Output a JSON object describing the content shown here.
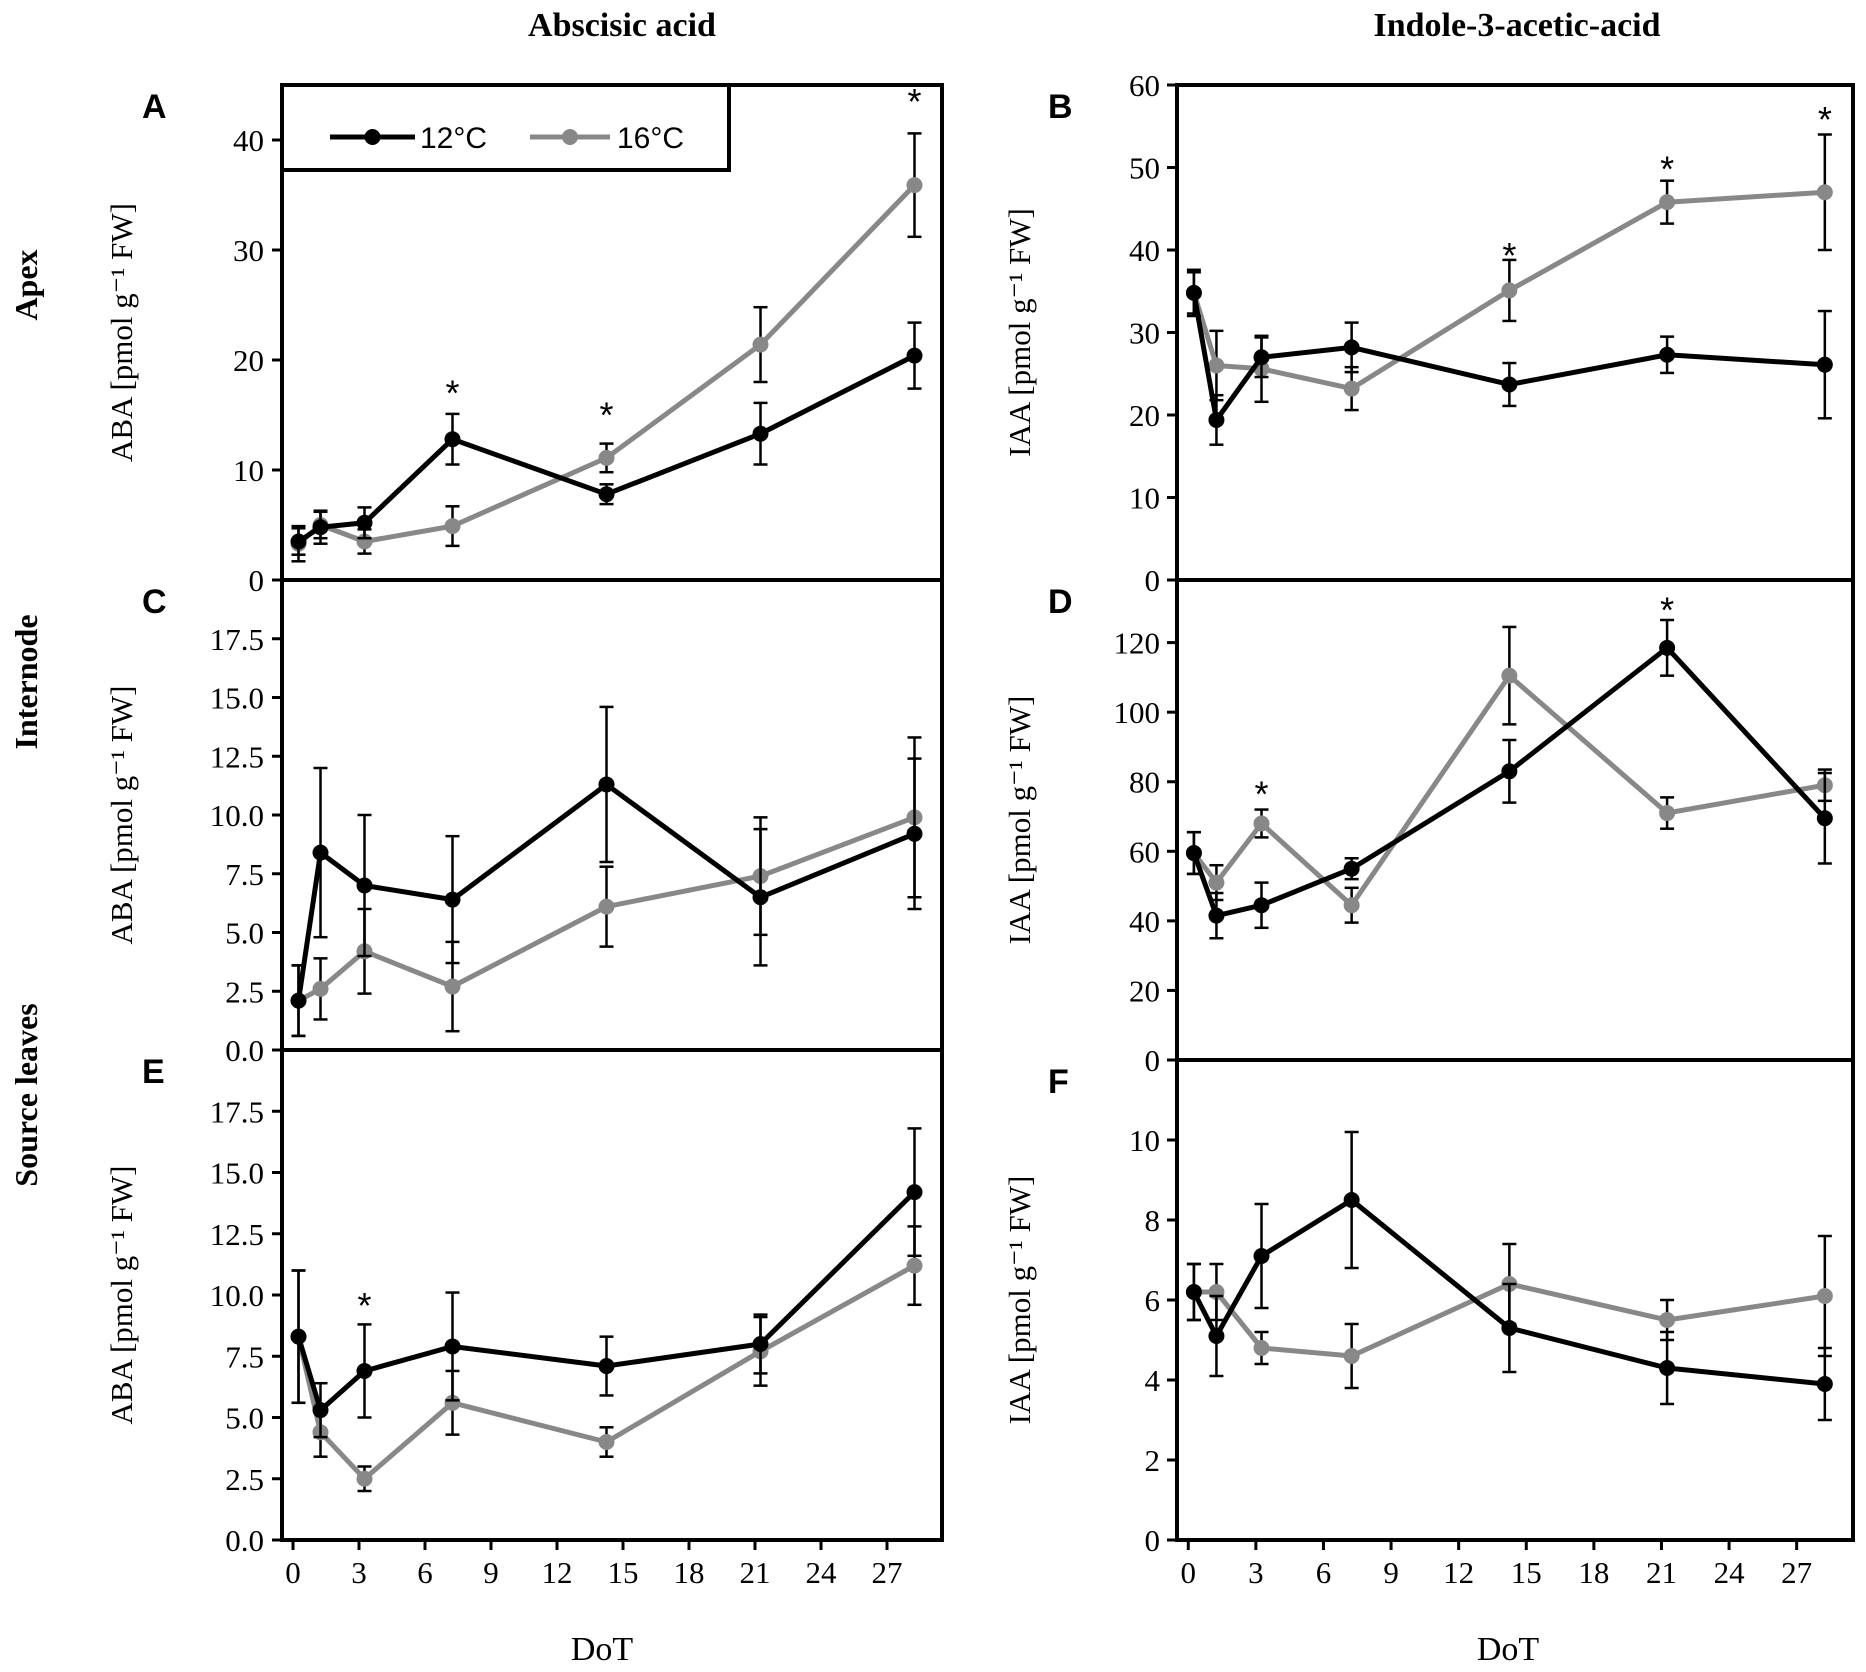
{
  "column_titles": [
    "Abscisic acid",
    "Indole-3-acetic-acid"
  ],
  "row_titles": [
    "Apex",
    "Internode",
    "Source leaves"
  ],
  "legend": {
    "entries": [
      "12°C",
      "16°C"
    ],
    "colors": [
      "#000000",
      "#888888"
    ]
  },
  "colors": {
    "series_12": "#000000",
    "series_16": "#888888",
    "axis": "#000000"
  },
  "xlabel": "DoT",
  "x_ticks": [
    "0",
    "3",
    "6",
    "9",
    "12",
    "15",
    "18",
    "21",
    "24",
    "27"
  ],
  "chart_data": [
    {
      "id": "A",
      "type": "line",
      "ylabel": "ABA [pmol g⁻¹ FW]",
      "xlim": [
        -0.5,
        29.5
      ],
      "ylim": [
        0,
        45
      ],
      "yticks": [
        "0",
        "10",
        "20",
        "30",
        "40"
      ],
      "ytick_values": [
        0,
        10,
        20,
        30,
        40
      ],
      "x": [
        0.25,
        1.25,
        3.25,
        7.25,
        14.25,
        21.25,
        28.25
      ],
      "series": [
        {
          "name": "12°C",
          "values": [
            3.5,
            4.8,
            5.2,
            12.8,
            7.8,
            13.3,
            20.4
          ],
          "errors": [
            1.2,
            1.5,
            1.4,
            2.3,
            0.9,
            2.8,
            3.0
          ]
        },
        {
          "name": "16°C",
          "values": [
            3.3,
            5.0,
            3.5,
            4.9,
            11.1,
            21.4,
            35.9
          ],
          "errors": [
            1.6,
            1.2,
            1.1,
            1.8,
            1.3,
            3.4,
            4.7
          ]
        }
      ],
      "significance": [
        {
          "x": 7.25,
          "y": 17.5,
          "label": "*"
        },
        {
          "x": 14.25,
          "y": 15.5,
          "label": "*"
        },
        {
          "x": 28.25,
          "y": 44.0,
          "label": "*"
        }
      ]
    },
    {
      "id": "B",
      "type": "line",
      "ylabel": "IAA [pmol g⁻¹ FW]",
      "xlim": [
        -0.5,
        29.5
      ],
      "ylim": [
        0,
        60
      ],
      "yticks": [
        "0",
        "10",
        "20",
        "30",
        "40",
        "50",
        "60"
      ],
      "ytick_values": [
        0,
        10,
        20,
        30,
        40,
        50,
        60
      ],
      "x": [
        0.25,
        1.25,
        3.25,
        7.25,
        14.25,
        21.25,
        28.25
      ],
      "series": [
        {
          "name": "12°C",
          "values": [
            34.8,
            19.4,
            27.0,
            28.2,
            23.7,
            27.3,
            26.1
          ],
          "errors": [
            2.8,
            3.0,
            2.4,
            3.0,
            2.6,
            2.2,
            6.5
          ]
        },
        {
          "name": "16°C",
          "values": [
            34.8,
            26.0,
            25.6,
            23.2,
            35.1,
            45.8,
            47.0
          ],
          "errors": [
            2.5,
            4.2,
            4.0,
            2.6,
            3.7,
            2.6,
            7.0
          ]
        }
      ],
      "significance": [
        {
          "x": 14.25,
          "y": 40.0,
          "label": "*"
        },
        {
          "x": 21.25,
          "y": 50.5,
          "label": "*"
        },
        {
          "x": 28.25,
          "y": 56.5,
          "label": "*"
        }
      ]
    },
    {
      "id": "C",
      "type": "line",
      "ylabel": "ABA [pmol g⁻¹ FW]",
      "xlim": [
        -0.5,
        29.5
      ],
      "ylim": [
        0,
        20
      ],
      "yticks": [
        "0.0",
        "2.5",
        "5.0",
        "7.5",
        "10.0",
        "12.5",
        "15.0",
        "17.5"
      ],
      "ytick_values": [
        0,
        2.5,
        5,
        7.5,
        10,
        12.5,
        15,
        17.5
      ],
      "x": [
        0.25,
        1.25,
        3.25,
        7.25,
        14.25,
        21.25,
        28.25
      ],
      "series": [
        {
          "name": "12°C",
          "values": [
            2.1,
            8.4,
            7.0,
            6.4,
            11.3,
            6.5,
            9.2
          ],
          "errors": [
            1.5,
            3.6,
            3.0,
            2.7,
            3.3,
            2.9,
            3.2
          ]
        },
        {
          "name": "16°C",
          "values": [
            2.1,
            2.6,
            4.2,
            2.7,
            6.1,
            7.4,
            9.9
          ],
          "errors": [
            1.5,
            1.3,
            1.8,
            1.9,
            1.7,
            2.5,
            3.4
          ]
        }
      ],
      "significance": []
    },
    {
      "id": "D",
      "type": "line",
      "ylabel": "IAA [pmol g⁻¹ FW]",
      "xlim": [
        -0.5,
        29.5
      ],
      "ylim": [
        0,
        138
      ],
      "yticks": [
        "0",
        "20",
        "40",
        "60",
        "80",
        "100",
        "120"
      ],
      "ytick_values": [
        0,
        20,
        40,
        60,
        80,
        100,
        120
      ],
      "x": [
        0.25,
        1.25,
        3.25,
        7.25,
        14.25,
        21.25,
        28.25
      ],
      "series": [
        {
          "name": "12°C",
          "values": [
            59.5,
            41.5,
            44.5,
            55.0,
            83.0,
            118.5,
            69.5
          ],
          "errors": [
            6.0,
            6.5,
            6.5,
            3.0,
            9.0,
            8.0,
            13.0
          ]
        },
        {
          "name": "16°C",
          "values": [
            59.5,
            51.0,
            68.0,
            44.5,
            110.5,
            71.0,
            79.0
          ],
          "errors": [
            6.0,
            5.0,
            4.0,
            5.0,
            14.0,
            4.5,
            4.5
          ]
        }
      ],
      "significance": [
        {
          "x": 3.25,
          "y": 78.0,
          "label": "*"
        },
        {
          "x": 21.25,
          "y": 131.0,
          "label": "*"
        }
      ]
    },
    {
      "id": "E",
      "type": "line",
      "ylabel": "ABA [pmol g⁻¹ FW]",
      "xlim": [
        -0.5,
        29.5
      ],
      "ylim": [
        0,
        20
      ],
      "yticks": [
        "0.0",
        "2.5",
        "5.0",
        "7.5",
        "10.0",
        "12.5",
        "15.0",
        "17.5"
      ],
      "ytick_values": [
        0,
        2.5,
        5,
        7.5,
        10,
        12.5,
        15,
        17.5
      ],
      "x": [
        0.25,
        1.25,
        3.25,
        7.25,
        14.25,
        21.25,
        28.25
      ],
      "series": [
        {
          "name": "12°C",
          "values": [
            8.3,
            5.3,
            6.9,
            7.9,
            7.1,
            8.0,
            14.2
          ],
          "errors": [
            2.7,
            1.1,
            1.9,
            2.2,
            1.2,
            1.2,
            2.6
          ]
        },
        {
          "name": "16°C",
          "values": [
            8.3,
            4.4,
            2.5,
            5.6,
            4.0,
            7.7,
            11.2
          ],
          "errors": [
            2.7,
            1.0,
            0.5,
            1.3,
            0.6,
            1.4,
            1.6
          ]
        }
      ],
      "significance": [
        {
          "x": 3.25,
          "y": 9.8,
          "label": "*"
        }
      ]
    },
    {
      "id": "F",
      "type": "line",
      "ylabel": "IAA [pmol g⁻¹ FW]",
      "xlim": [
        -0.5,
        29.5
      ],
      "ylim": [
        0,
        12
      ],
      "yticks": [
        "0",
        "2",
        "4",
        "6",
        "8",
        "10"
      ],
      "ytick_values": [
        0,
        2,
        4,
        6,
        8,
        10
      ],
      "x": [
        0.25,
        1.25,
        3.25,
        7.25,
        14.25,
        21.25,
        28.25
      ],
      "series": [
        {
          "name": "12°C",
          "values": [
            6.2,
            5.1,
            7.1,
            8.5,
            5.3,
            4.3,
            3.9
          ],
          "errors": [
            0.7,
            1.0,
            1.3,
            1.7,
            1.1,
            0.9,
            0.9
          ]
        },
        {
          "name": "16°C",
          "values": [
            6.2,
            6.2,
            4.8,
            4.6,
            6.4,
            5.5,
            6.1
          ],
          "errors": [
            0.7,
            0.7,
            0.4,
            0.8,
            1.0,
            0.5,
            1.5
          ]
        }
      ],
      "significance": []
    }
  ]
}
